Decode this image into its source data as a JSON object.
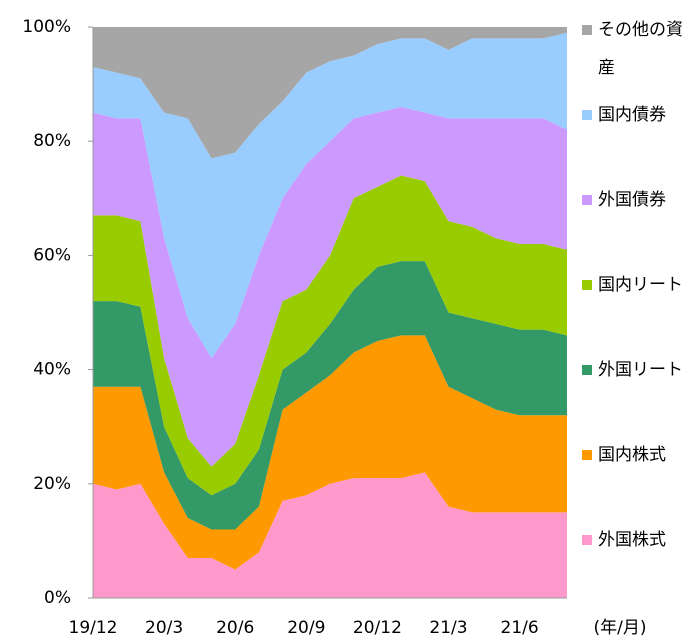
{
  "chart_data": {
    "type": "stacked-area",
    "categories": [
      "19/12",
      null,
      null,
      "20/3",
      null,
      null,
      "20/6",
      null,
      null,
      "20/9",
      null,
      null,
      "20/12",
      null,
      null,
      "21/3",
      null,
      null,
      "21/6",
      null,
      null
    ],
    "x_label": "(年/月)",
    "ylim": [
      0,
      100
    ],
    "yticks": [
      {
        "value": 0,
        "label": "0%"
      },
      {
        "value": 20,
        "label": "20%"
      },
      {
        "value": 40,
        "label": "40%"
      },
      {
        "value": 60,
        "label": "60%"
      },
      {
        "value": 80,
        "label": "80%"
      },
      {
        "value": 100,
        "label": "100%"
      }
    ],
    "series": [
      {
        "name": "外国株式",
        "color": "#ff99cc",
        "values": [
          20,
          19,
          20,
          13,
          7,
          7,
          5,
          8,
          17,
          18,
          20,
          21,
          21,
          21,
          22,
          16,
          15,
          15,
          15,
          15,
          15
        ]
      },
      {
        "name": "国内株式",
        "color": "#ff9900",
        "values": [
          17,
          18,
          17,
          9,
          7,
          5,
          7,
          8,
          16,
          18,
          19,
          22,
          24,
          25,
          24,
          21,
          20,
          18,
          17,
          17,
          17
        ]
      },
      {
        "name": "外国リート",
        "color": "#339966",
        "values": [
          15,
          15,
          14,
          8,
          7,
          6,
          8,
          10,
          7,
          7,
          9,
          11,
          13,
          13,
          13,
          13,
          14,
          15,
          15,
          15,
          14
        ]
      },
      {
        "name": "国内リート",
        "color": "#99cc00",
        "values": [
          15,
          15,
          15,
          12,
          7,
          5,
          7,
          13,
          12,
          11,
          12,
          16,
          14,
          15,
          14,
          16,
          16,
          15,
          15,
          15,
          15
        ]
      },
      {
        "name": "外国債券",
        "color": "#cc99ff",
        "values": [
          18,
          17,
          18,
          21,
          21,
          19,
          21,
          21,
          18,
          22,
          20,
          14,
          13,
          12,
          12,
          18,
          19,
          21,
          22,
          22,
          21
        ]
      },
      {
        "name": "国内債券",
        "color": "#99ccff",
        "values": [
          8,
          8,
          7,
          22,
          35,
          35,
          30,
          23,
          17,
          16,
          14,
          11,
          12,
          12,
          13,
          12,
          14,
          14,
          14,
          14,
          17
        ]
      },
      {
        "name": "その他の資産",
        "color": "#a6a6a6",
        "values": [
          7,
          8,
          9,
          15,
          16,
          23,
          22,
          17,
          13,
          8,
          6,
          5,
          3,
          2,
          2,
          4,
          2,
          2,
          2,
          2,
          1
        ]
      }
    ]
  }
}
